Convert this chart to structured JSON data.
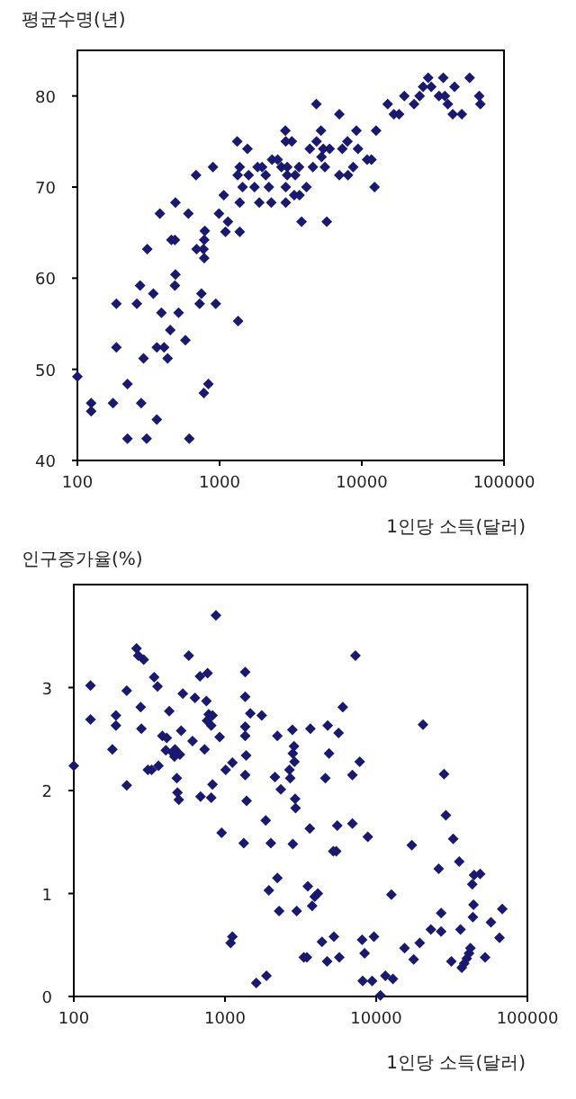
{
  "chart_data": [
    {
      "type": "scatter",
      "ylabel": "평균수명(년)",
      "xlabel": "1인당 소득(달러)",
      "log": "x",
      "marker": "diamond",
      "color": "#191970",
      "xlim": [
        100,
        100000
      ],
      "xticks": [
        100,
        1000,
        10000,
        100000
      ],
      "ylim": [
        40,
        85
      ],
      "yticks": [
        40,
        50,
        60,
        70,
        80
      ],
      "x": [
        100,
        125,
        125,
        178,
        188,
        188,
        225,
        225,
        262,
        276,
        281,
        292,
        310,
        307,
        342,
        362,
        362,
        380,
        390,
        407,
        431,
        450,
        458,
        485,
        489,
        485,
        489,
        515,
        575,
        612,
        603,
        683,
        689,
        724,
        745,
        770,
        775,
        780,
        780,
        787,
        834,
        898,
        940,
        990,
        1070,
        1100,
        1145,
        1330,
        1350,
        1340,
        1385,
        1385,
        1385,
        1450,
        1570,
        1600,
        1760,
        1850,
        1900,
        1990,
        2110,
        2220,
        2310,
        2340,
        2560,
        2720,
        2900,
        2920,
        2920,
        2920,
        2990,
        2990,
        3220,
        3350,
        3400,
        3620,
        3650,
        3770,
        4080,
        4310,
        4530,
        4790,
        4810,
        5160,
        5210,
        5360,
        5500,
        5670,
        5940,
        6950,
        6950,
        7300,
        7930,
        7990,
        8700,
        9160,
        9400,
        10900,
        11700,
        12300,
        12600,
        15200,
        16800,
        18300,
        19900,
        23300,
        25500,
        27000,
        29300,
        30800,
        34900,
        37400,
        38400,
        40300,
        43600,
        44900,
        50500,
        57300,
        66900,
        68200
      ],
      "values": [
        49.2,
        46.3,
        45.4,
        46.3,
        52.4,
        57.2,
        48.4,
        42.4,
        57.2,
        59.2,
        46.3,
        51.2,
        63.2,
        42.4,
        58.3,
        44.5,
        52.4,
        67.1,
        56.2,
        52.4,
        51.2,
        54.3,
        64.2,
        64.2,
        68.3,
        59.2,
        60.4,
        56.2,
        53.2,
        42.4,
        67.1,
        71.3,
        63.2,
        57.2,
        58.3,
        63.2,
        47.4,
        62.2,
        64.2,
        65.2,
        48.4,
        72.2,
        57.2,
        67.1,
        69.1,
        65.1,
        66.2,
        75.0,
        55.3,
        71.3,
        72.2,
        68.3,
        65.1,
        70.0,
        74.2,
        71.3,
        70.0,
        72.2,
        68.3,
        72.2,
        71.3,
        70.0,
        68.3,
        73.0,
        73.0,
        72.2,
        76.2,
        75.0,
        70.0,
        68.3,
        72.2,
        71.3,
        75.0,
        69.1,
        71.3,
        72.2,
        69.1,
        66.2,
        70.0,
        74.2,
        72.2,
        79.1,
        75.0,
        76.2,
        73.3,
        74.2,
        72.2,
        66.2,
        74.2,
        78.0,
        71.3,
        74.2,
        75.0,
        71.3,
        72.2,
        76.2,
        74.2,
        73.0,
        73.0,
        70.0,
        76.2,
        79.1,
        78.0,
        78.0,
        80.0,
        79.1,
        80.0,
        81.0,
        82.0,
        81.0,
        80.0,
        82.0,
        80.0,
        79.1,
        78.0,
        81.0,
        78.0,
        82.0,
        80.0,
        79.1
      ]
    },
    {
      "type": "scatter",
      "ylabel": "인구증가율(%)",
      "xlabel": "1인당 소득(달러)",
      "log": "x",
      "marker": "diamond",
      "color": "#191970",
      "xlim": [
        100,
        100000
      ],
      "xticks": [
        100,
        1000,
        10000,
        100000
      ],
      "ylim": [
        0,
        4
      ],
      "yticks": [
        0,
        1,
        2,
        3
      ],
      "x": [
        100,
        129,
        129,
        180,
        190,
        190,
        224,
        224,
        260,
        267,
        277,
        280,
        290,
        309,
        327,
        340,
        358,
        363,
        385,
        406,
        412,
        428,
        450,
        463,
        467,
        480,
        485,
        495,
        503,
        513,
        526,
        576,
        610,
        633,
        683,
        689,
        733,
        754,
        761,
        767,
        781,
        811,
        811,
        827,
        827,
        871,
        922,
        950,
        1010,
        1090,
        1120,
        1120,
        1360,
        1360,
        1360,
        1360,
        1380,
        1360,
        1390,
        1330,
        1470,
        1610,
        1750,
        1860,
        1880,
        1950,
        2010,
        2140,
        2220,
        2220,
        2280,
        2340,
        2670,
        2700,
        2790,
        2810,
        2810,
        2860,
        2880,
        2910,
        2930,
        2980,
        3320,
        3480,
        3530,
        3640,
        3670,
        3770,
        3920,
        4110,
        4380,
        4610,
        4740,
        4780,
        4880,
        5200,
        5250,
        5440,
        5530,
        5640,
        5700,
        6010,
        6960,
        6960,
        7290,
        7780,
        8070,
        8140,
        8380,
        8800,
        9400,
        9660,
        10660,
        11500,
        12600,
        12900,
        15400,
        17200,
        17700,
        19400,
        20400,
        23000,
        25900,
        26900,
        26900,
        28100,
        28900,
        31400,
        32300,
        35400,
        36100,
        36800,
        38200,
        39700,
        41100,
        42000,
        43200,
        43600,
        44000,
        44400,
        48700,
        52500,
        57400,
        68200,
        65400
      ],
      "values": [
        2.24,
        3.02,
        2.69,
        2.4,
        2.73,
        2.63,
        2.97,
        2.05,
        3.38,
        3.31,
        2.81,
        2.6,
        3.27,
        2.2,
        2.2,
        3.1,
        3.01,
        2.24,
        2.53,
        2.39,
        2.51,
        2.77,
        2.37,
        2.33,
        2.4,
        2.12,
        1.98,
        1.91,
        2.35,
        2.58,
        2.94,
        3.31,
        2.48,
        2.9,
        3.11,
        1.94,
        2.4,
        2.87,
        2.68,
        3.14,
        2.74,
        2.63,
        1.93,
        2.73,
        2.06,
        3.7,
        2.52,
        1.59,
        2.2,
        0.52,
        0.58,
        2.27,
        3.15,
        2.91,
        2.62,
        2.53,
        2.34,
        2.15,
        1.9,
        1.49,
        2.75,
        0.13,
        2.73,
        1.71,
        0.2,
        1.03,
        1.49,
        2.13,
        2.53,
        1.15,
        0.83,
        2.01,
        2.2,
        2.12,
        2.59,
        2.36,
        1.48,
        2.43,
        2.28,
        1.92,
        1.83,
        0.83,
        0.38,
        0.38,
        1.07,
        1.63,
        2.6,
        0.88,
        0.97,
        1.0,
        0.53,
        2.12,
        0.34,
        2.63,
        2.36,
        1.41,
        0.58,
        1.41,
        1.66,
        2.56,
        0.38,
        2.81,
        1.68,
        2.15,
        3.31,
        2.28,
        0.55,
        0.15,
        0.42,
        1.55,
        0.15,
        0.58,
        0.01,
        0.2,
        0.99,
        0.17,
        0.47,
        1.47,
        0.36,
        0.52,
        2.64,
        0.65,
        1.24,
        0.63,
        0.81,
        2.16,
        1.76,
        0.34,
        1.53,
        1.31,
        0.65,
        0.28,
        0.32,
        0.37,
        0.42,
        0.47,
        1.09,
        0.77,
        0.89,
        1.18,
        1.19,
        0.38,
        0.72,
        0.85,
        0.57
      ]
    }
  ]
}
